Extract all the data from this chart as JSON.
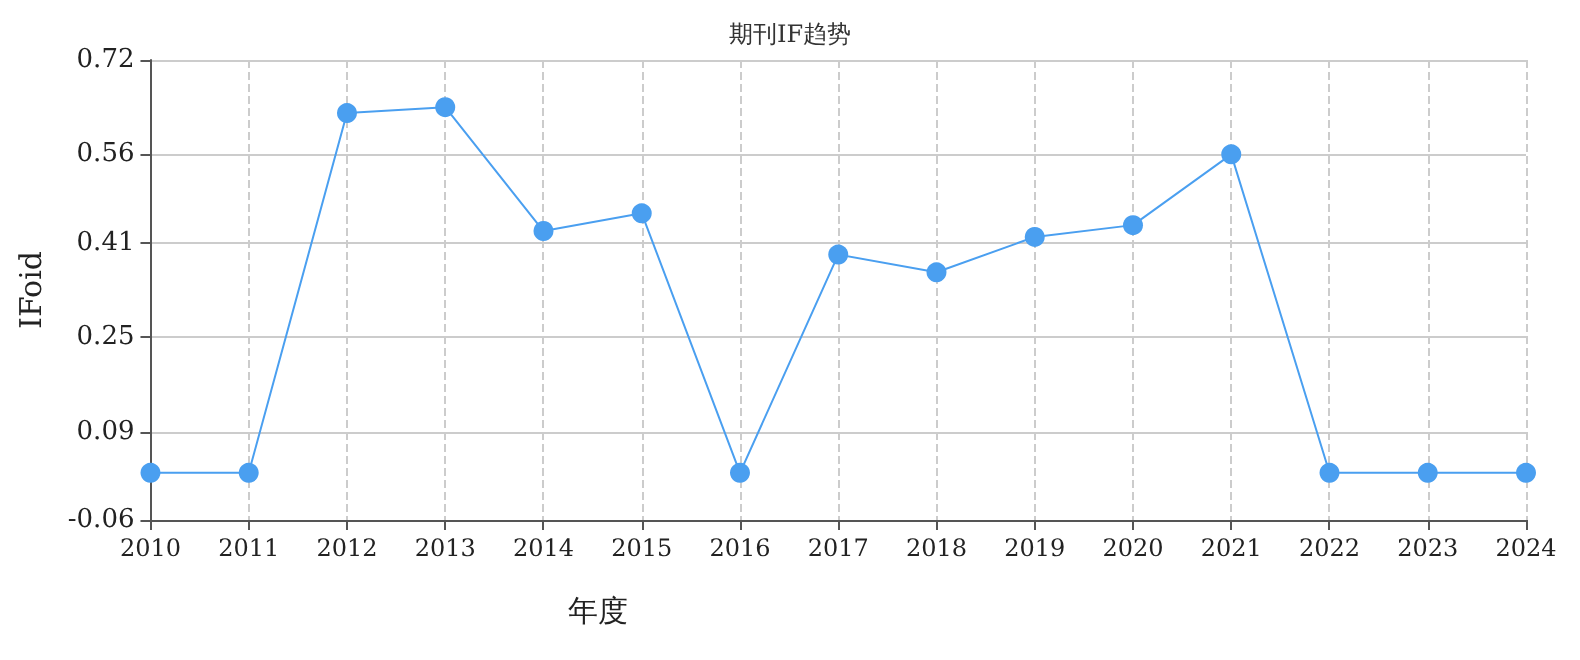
{
  "chart_data": {
    "type": "line",
    "title": "期刊IF趋势",
    "xlabel": "年度",
    "ylabel": "IFoid",
    "categories": [
      "2010",
      "2011",
      "2012",
      "2013",
      "2014",
      "2015",
      "2016",
      "2017",
      "2018",
      "2019",
      "2020",
      "2021",
      "2022",
      "2023",
      "2024"
    ],
    "series": [
      {
        "color": "#4a9ff0",
        "values": [
          0.02,
          0.02,
          0.63,
          0.64,
          0.43,
          0.46,
          0.02,
          0.39,
          0.36,
          0.42,
          0.44,
          0.56,
          0.02,
          0.02,
          0.02
        ]
      }
    ],
    "ylim": [
      -0.06,
      0.72
    ],
    "yticks": [
      -0.06,
      0.09,
      0.25,
      0.41,
      0.56,
      0.72
    ],
    "grid": true,
    "marker": "circle",
    "line_style": "solid"
  }
}
